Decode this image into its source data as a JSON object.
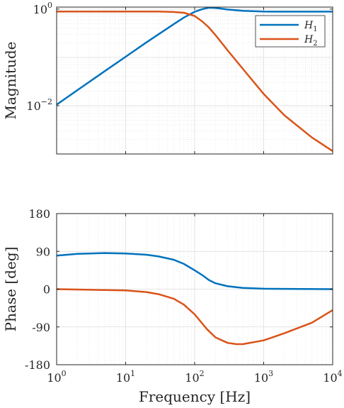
{
  "chart_data": [
    {
      "type": "line",
      "title": "",
      "xlabel": "",
      "ylabel": "Magnitude",
      "xscale": "log",
      "yscale": "log",
      "xlim": [
        1,
        10000
      ],
      "ylim": [
        0.001,
        1.1
      ],
      "grid": true,
      "legend": "top-right",
      "ytick_labels": [
        {
          "base": "10",
          "exp": "0",
          "value": 1
        },
        {
          "base": "10",
          "exp": "−2",
          "value": 0.01
        }
      ],
      "series": [
        {
          "name_base": "H",
          "name_sub": "1",
          "color": "#0072BD",
          "x": [
            1,
            2,
            5,
            10,
            20,
            50,
            70,
            100,
            130,
            160,
            200,
            300,
            500,
            1000,
            2000,
            5000,
            10000
          ],
          "y": [
            0.0105,
            0.021,
            0.052,
            0.103,
            0.205,
            0.49,
            0.67,
            0.88,
            1.0,
            1.07,
            1.06,
            0.98,
            0.92,
            0.89,
            0.885,
            0.885,
            0.885
          ]
        },
        {
          "name_base": "H",
          "name_sub": "2",
          "color": "#D95319",
          "x": [
            1,
            10,
            30,
            50,
            70,
            100,
            130,
            160,
            200,
            300,
            500,
            1000,
            2000,
            5000,
            10000
          ],
          "y": [
            0.89,
            0.89,
            0.89,
            0.87,
            0.84,
            0.72,
            0.55,
            0.42,
            0.29,
            0.14,
            0.058,
            0.0175,
            0.0063,
            0.0022,
            0.00115
          ]
        }
      ]
    },
    {
      "type": "line",
      "title": "",
      "xlabel": "Frequency [Hz]",
      "ylabel": "Phase [deg]",
      "xscale": "log",
      "xlim": [
        1,
        10000
      ],
      "ylim": [
        -180,
        180
      ],
      "yticks": [
        180,
        90,
        0,
        -90,
        -180
      ],
      "ytick_labels": [
        "180",
        "90",
        "0",
        "-90",
        "-180"
      ],
      "xtick_labels": [
        {
          "base": "10",
          "exp": "0",
          "value": 1
        },
        {
          "base": "10",
          "exp": "1",
          "value": 10
        },
        {
          "base": "10",
          "exp": "2",
          "value": 100
        },
        {
          "base": "10",
          "exp": "3",
          "value": 1000
        },
        {
          "base": "10",
          "exp": "4",
          "value": 10000
        }
      ],
      "grid": true,
      "series": [
        {
          "color": "#0072BD",
          "x": [
            1,
            2,
            5,
            10,
            20,
            30,
            50,
            70,
            100,
            130,
            160,
            200,
            300,
            500,
            1000,
            10000
          ],
          "y": [
            80,
            84,
            86,
            85,
            82,
            78,
            70,
            60,
            45,
            33,
            22,
            14,
            7,
            3,
            1,
            0
          ]
        },
        {
          "color": "#D95319",
          "x": [
            1,
            5,
            10,
            20,
            30,
            50,
            70,
            100,
            150,
            200,
            300,
            400,
            500,
            1000,
            2000,
            5000,
            10000
          ],
          "y": [
            0,
            -2,
            -3,
            -7,
            -12,
            -23,
            -37,
            -60,
            -95,
            -115,
            -128,
            -131,
            -131,
            -122,
            -105,
            -80,
            -50
          ]
        }
      ]
    }
  ]
}
